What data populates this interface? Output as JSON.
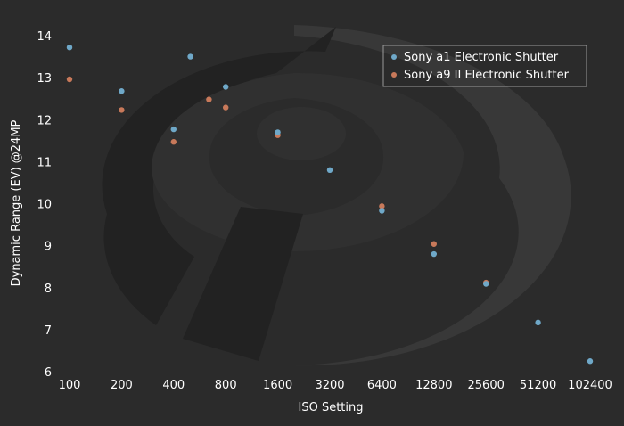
{
  "chart_data": {
    "type": "scatter",
    "title": "",
    "xlabel": "ISO Setting",
    "ylabel": "Dynamic Range (EV) @24MP",
    "x_scale": "log2",
    "xlim": [
      100,
      102400
    ],
    "ylim": [
      6,
      14
    ],
    "x_ticks": [
      100,
      200,
      400,
      800,
      1600,
      3200,
      6400,
      12800,
      25600,
      51200,
      102400
    ],
    "x_tick_labels": [
      "100",
      "200",
      "400",
      "800",
      "1600",
      "3200",
      "6400",
      "12800",
      "25600",
      "51200",
      "102400"
    ],
    "y_ticks": [
      6,
      7,
      8,
      9,
      10,
      11,
      12,
      13,
      14
    ],
    "y_tick_labels": [
      "6",
      "7",
      "8",
      "9",
      "10",
      "11",
      "12",
      "13",
      "14"
    ],
    "grid": false,
    "legend_position": "top-right",
    "series": [
      {
        "name": "Sony a1 Electronic Shutter",
        "color": "#6fa8c8",
        "points": [
          {
            "x": 100,
            "y": 13.72
          },
          {
            "x": 200,
            "y": 12.68
          },
          {
            "x": 400,
            "y": 11.77
          },
          {
            "x": 500,
            "y": 13.5
          },
          {
            "x": 800,
            "y": 12.78
          },
          {
            "x": 1600,
            "y": 11.7
          },
          {
            "x": 3200,
            "y": 10.8
          },
          {
            "x": 6400,
            "y": 9.83
          },
          {
            "x": 12800,
            "y": 8.8
          },
          {
            "x": 25600,
            "y": 8.09
          },
          {
            "x": 51200,
            "y": 7.17
          },
          {
            "x": 102400,
            "y": 6.25
          }
        ]
      },
      {
        "name": "Sony a9 II Electronic Shutter",
        "color": "#c8795a",
        "points": [
          {
            "x": 100,
            "y": 12.96
          },
          {
            "x": 200,
            "y": 12.23
          },
          {
            "x": 400,
            "y": 11.47
          },
          {
            "x": 640,
            "y": 12.48
          },
          {
            "x": 800,
            "y": 12.29
          },
          {
            "x": 1600,
            "y": 11.63
          },
          {
            "x": 6400,
            "y": 9.94
          },
          {
            "x": 12800,
            "y": 9.04
          },
          {
            "x": 25600,
            "y": 8.12
          }
        ]
      }
    ]
  },
  "background": {
    "color": "#2b2b2b",
    "logo_dark": "#222222",
    "logo_light": "#383838",
    "logo_mid": "#303030"
  },
  "legend_style": {
    "border": "#9a9a9a"
  }
}
